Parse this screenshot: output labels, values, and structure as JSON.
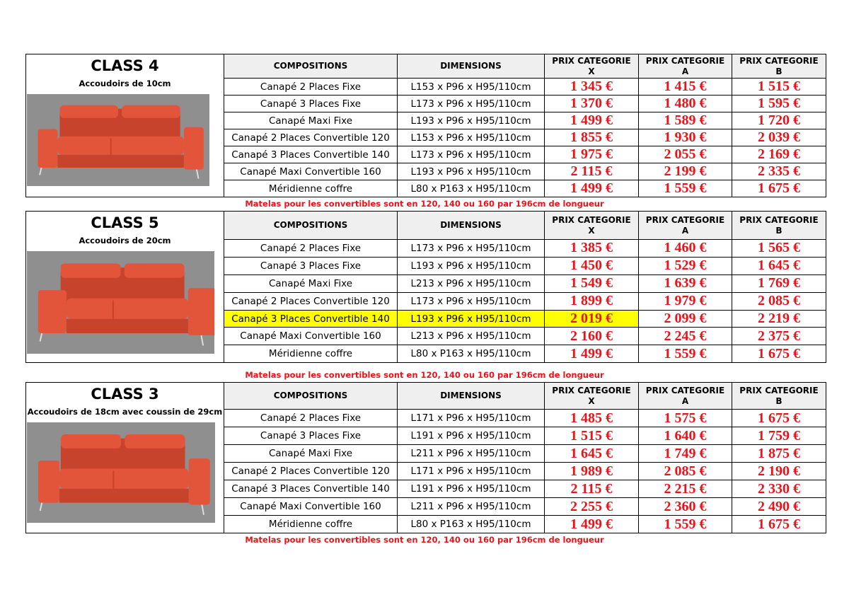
{
  "header_labels": {
    "compositions": "COMPOSITIONS",
    "dimensions": "DIMENSIONS",
    "prix_x": [
      "PRIX CATEGORIE",
      "X"
    ],
    "prix_a": [
      "PRIX  CATEGORIE",
      "A"
    ],
    "prix_b": [
      "PRIX  CATEGORIE",
      "B"
    ]
  },
  "note": "Matelas pour les convertibles sont en 120, 140 ou 160 par 196cm de longueur",
  "colors": {
    "price": "#e8141b",
    "highlight": "#ffff00",
    "header_bg": "#efefef",
    "sofa": "#e2553a"
  },
  "sections": [
    {
      "title": "CLASS 4",
      "subtitle": "Accoudoirs de 10cm",
      "image": "orange-sofa-photo",
      "rows": [
        {
          "composition": "Canapé 2 Places Fixe",
          "dimensions": "L153 x P96 x H95/110cm",
          "x": "1 345 €",
          "a": "1 415 €",
          "b": "1 515 €"
        },
        {
          "composition": "Canapé 3 Places Fixe",
          "dimensions": "L173 x P96 x H95/110cm",
          "x": "1 370 €",
          "a": "1 480 €",
          "b": "1 595 €"
        },
        {
          "composition": "Canapé Maxi Fixe",
          "dimensions": "L193 x P96 x H95/110cm",
          "x": "1 499 €",
          "a": "1 589 €",
          "b": "1 720 €"
        },
        {
          "composition": "Canapé 2 Places Convertible 120",
          "dimensions": "L153 x P96 x H95/110cm",
          "x": "1 855 €",
          "a": "1 930 €",
          "b": "2 039 €"
        },
        {
          "composition": "Canapé 3 Places Convertible 140",
          "dimensions": "L173 x P96 x H95/110cm",
          "x": "1 975 €",
          "a": "2 055 €",
          "b": "2 169 €"
        },
        {
          "composition": "Canapé Maxi Convertible 160",
          "dimensions": "L193 x P96 x H95/110cm",
          "x": "2 115 €",
          "a": "2 199 €",
          "b": "2 335 €"
        },
        {
          "composition": "Méridienne coffre",
          "dimensions": "L80 x P163 x H95/110cm",
          "x": "1 499 €",
          "a": "1 559 €",
          "b": "1 675 €"
        }
      ]
    },
    {
      "title": "CLASS 5",
      "subtitle": "Accoudoirs de 20cm",
      "image": "orange-sofa-photo",
      "rows": [
        {
          "composition": "Canapé 2 Places Fixe",
          "dimensions": "L173 x P96 x H95/110cm",
          "x": "1 385 €",
          "a": "1 460 €",
          "b": "1 565 €"
        },
        {
          "composition": "Canapé 3 Places Fixe",
          "dimensions": "L193 x P96 x H95/110cm",
          "x": "1 450 €",
          "a": "1 529 €",
          "b": "1 645 €"
        },
        {
          "composition": "Canapé Maxi Fixe",
          "dimensions": "L213 x P96 x H95/110cm",
          "x": "1 549 €",
          "a": "1 639 €",
          "b": "1 769 €"
        },
        {
          "composition": "Canapé 2 Places Convertible 120",
          "dimensions": "L173 x P96 x H95/110cm",
          "x": "1 899 €",
          "a": "1 979 €",
          "b": "2 085 €"
        },
        {
          "composition": "Canapé 3 Places Convertible 140",
          "dimensions": "L193 x P96 x H95/110cm",
          "x": "2 019 €",
          "a": "2 099 €",
          "b": "2 219 €",
          "highlighted": true
        },
        {
          "composition": "Canapé Maxi Convertible 160",
          "dimensions": "L213 x P96 x H95/110cm",
          "x": "2 160 €",
          "a": "2 245 €",
          "b": "2 375 €"
        },
        {
          "composition": "Méridienne coffre",
          "dimensions": "L80 x P163 x H95/110cm",
          "x": "1 499 €",
          "a": "1 559 €",
          "b": "1 675 €"
        }
      ]
    },
    {
      "title": "CLASS 3",
      "subtitle": "Accoudoirs de 18cm avec coussin de 29cm",
      "image": "orange-sofa-photo",
      "rows": [
        {
          "composition": "Canapé 2 Places Fixe",
          "dimensions": "L171 x P96 x H95/110cm",
          "x": "1 485 €",
          "a": "1 575 €",
          "b": "1 675 €"
        },
        {
          "composition": "Canapé 3 Places Fixe",
          "dimensions": "L191 x P96 x H95/110cm",
          "x": "1 515 €",
          "a": "1 640 €",
          "b": "1 759 €"
        },
        {
          "composition": "Canapé Maxi Fixe",
          "dimensions": "L211 x P96 x H95/110cm",
          "x": "1 645 €",
          "a": "1 749 €",
          "b": "1 875 €"
        },
        {
          "composition": "Canapé 2 Places Convertible 120",
          "dimensions": "L171 x P96 x H95/110cm",
          "x": "1 989 €",
          "a": "2 085 €",
          "b": "2 190 €"
        },
        {
          "composition": "Canapé 3 Places Convertible 140",
          "dimensions": "L191 x P96 x H95/110cm",
          "x": "2 115 €",
          "a": "2 215 €",
          "b": "2 330 €"
        },
        {
          "composition": "Canapé Maxi Convertible 160",
          "dimensions": "L211 x P96 x H95/110cm",
          "x": "2 255 €",
          "a": "2 360 €",
          "b": "2 490 €"
        },
        {
          "composition": "Méridienne coffre",
          "dimensions": "L80 x P163 x H95/110cm",
          "x": "1 499 €",
          "a": "1 559 €",
          "b": "1 675 €"
        }
      ]
    }
  ]
}
